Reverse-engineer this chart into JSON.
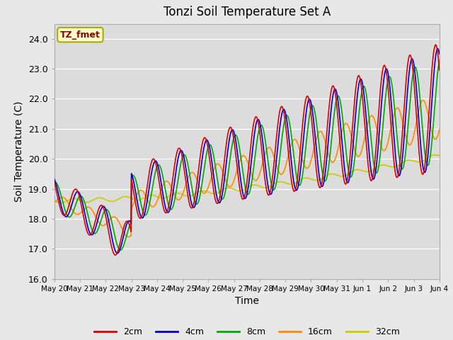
{
  "title": "Tonzi Soil Temperature Set A",
  "xlabel": "Time",
  "ylabel": "Soil Temperature (C)",
  "ylim": [
    16.0,
    24.5
  ],
  "background_color": "#e8e8e8",
  "plot_bg_color": "#dcdcdc",
  "annotation_text": "TZ_fmet",
  "annotation_bg": "#ffffcc",
  "annotation_edge": "#aaaa00",
  "annotation_color": "#8b0000",
  "x_tick_labels": [
    "May 20",
    "May 21",
    "May 22",
    "May 23",
    "May 24",
    "May 25",
    "May 26",
    "May 27",
    "May 28",
    "May 29",
    "May 30",
    "May 31",
    "Jun 1",
    "Jun 2",
    "Jun 3",
    "Jun 4"
  ],
  "legend_labels": [
    "2cm",
    "4cm",
    "8cm",
    "16cm",
    "32cm"
  ],
  "legend_colors": [
    "#dd0000",
    "#0000cc",
    "#00aa00",
    "#ff8c00",
    "#cccc00"
  ]
}
